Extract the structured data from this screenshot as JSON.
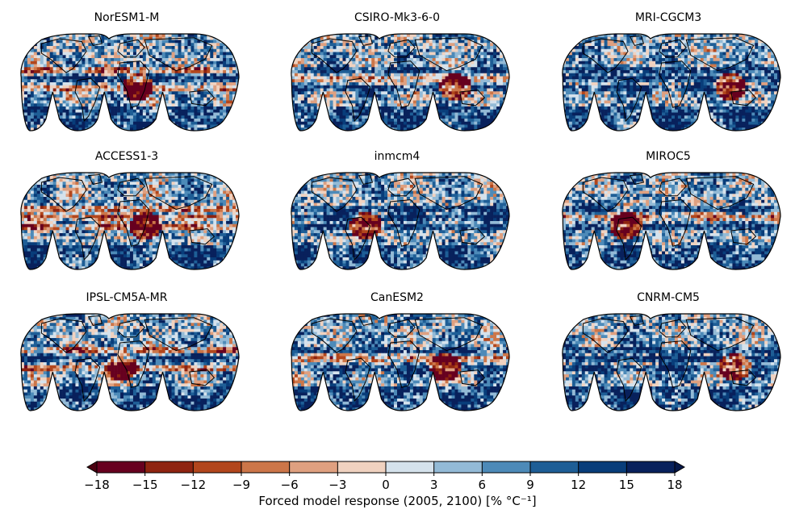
{
  "chart_data": {
    "type": "heatmap",
    "description_type": "small-multiples choropleth maps (Goode homolosine projection)",
    "panels": [
      {
        "title": "NorESM1-M"
      },
      {
        "title": "CSIRO-Mk3-6-0"
      },
      {
        "title": "MRI-CGCM3"
      },
      {
        "title": "ACCESS1-3"
      },
      {
        "title": "inmcm4"
      },
      {
        "title": "MIROC5"
      },
      {
        "title": "IPSL-CM5A-MR"
      },
      {
        "title": "CanESM2"
      },
      {
        "title": "CNRM-CM5"
      }
    ],
    "grid": {
      "rows": 3,
      "cols": 3
    },
    "colorbar": {
      "label": "Forced model response (2005, 2100) [% °C⁻¹]",
      "ticks": [
        -18,
        -15,
        -12,
        -9,
        -6,
        -3,
        0,
        3,
        6,
        9,
        12,
        15,
        18
      ],
      "tick_labels": [
        "−18",
        "−15",
        "−12",
        "−9",
        "−6",
        "−3",
        "0",
        "3",
        "6",
        "9",
        "12",
        "15",
        "18"
      ],
      "vmin": -18,
      "vmax": 18,
      "extend": "both",
      "colors": [
        "#67001f",
        "#8f2410",
        "#b2461c",
        "#cc7649",
        "#dfa080",
        "#f0d2c0",
        "#d5e2ec",
        "#93bad6",
        "#4d8ab8",
        "#1e5e96",
        "#083d7a",
        "#08215c"
      ],
      "under_color": "#4a0010",
      "over_color": "#061848"
    },
    "colors": {
      "coastline": "#000000",
      "outline": "#000000"
    }
  }
}
